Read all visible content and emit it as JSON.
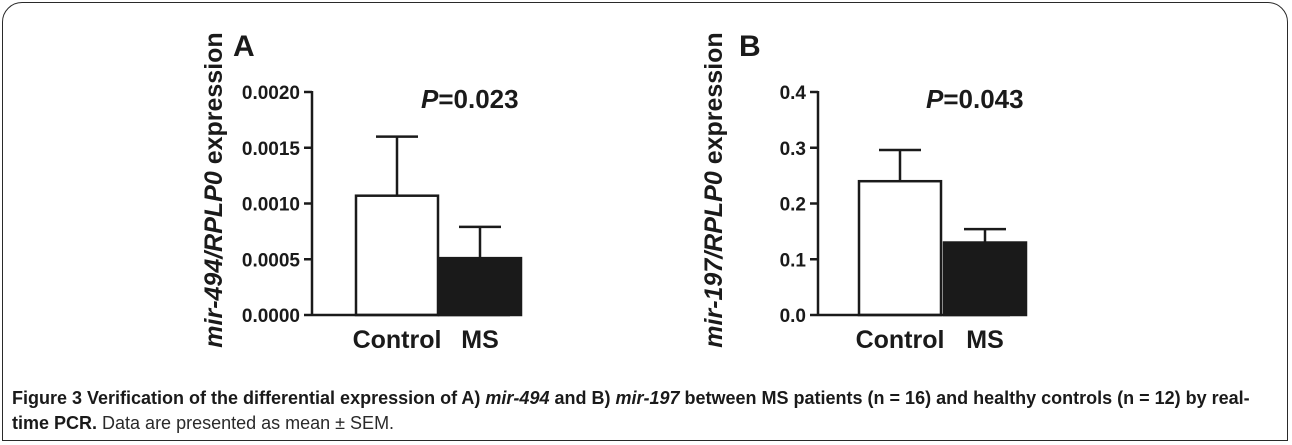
{
  "charts": [
    {
      "panel_label": "A",
      "ylabel_gene": "mir-494/RPLP0",
      "ylabel_rest": " expression",
      "p_symbol": "P",
      "p_value_text": "=0.023",
      "ytick_labels": [
        "0.0000",
        "0.0005",
        "0.0010",
        "0.0015",
        "0.0020"
      ]
    },
    {
      "panel_label": "B",
      "ylabel_gene": "mir-197/RPLP0",
      "ylabel_rest": " expression",
      "p_symbol": "P",
      "p_value_text": "=0.043",
      "ytick_labels": [
        "0.0",
        "0.1",
        "0.2",
        "0.3",
        "0.4"
      ]
    }
  ],
  "chart_data": [
    {
      "type": "bar",
      "categories": [
        "Control",
        "MS"
      ],
      "values": [
        0.00107,
        0.00051
      ],
      "errors": [
        0.00053,
        0.00028
      ],
      "ylim": [
        0,
        0.002
      ],
      "yticks": [
        0,
        0.0005,
        0.001,
        0.0015,
        0.002
      ],
      "ylabel": "mir-494/RPLP0 expression",
      "annotation": "P=0.023",
      "bar_fills": [
        "#ffffff",
        "#1a1a1a"
      ]
    },
    {
      "type": "bar",
      "categories": [
        "Control",
        "MS"
      ],
      "values": [
        0.24,
        0.13
      ],
      "errors": [
        0.056,
        0.024
      ],
      "ylim": [
        0,
        0.4
      ],
      "yticks": [
        0,
        0.1,
        0.2,
        0.3,
        0.4
      ],
      "ylabel": "mir-197/RPLP0 expression",
      "annotation": "P=0.043",
      "bar_fills": [
        "#ffffff",
        "#1a1a1a"
      ]
    }
  ],
  "caption": {
    "p1": "Figure 3 Verification of the differential expression of A) ",
    "g1": "mir-494",
    "p2": " and B) ",
    "g2": "mir-197",
    "p3": " between MS patients (n = 16) and healthy controls (n = 12) by real-time PCR.",
    "rest": " Data are presented as mean ± SEM."
  }
}
